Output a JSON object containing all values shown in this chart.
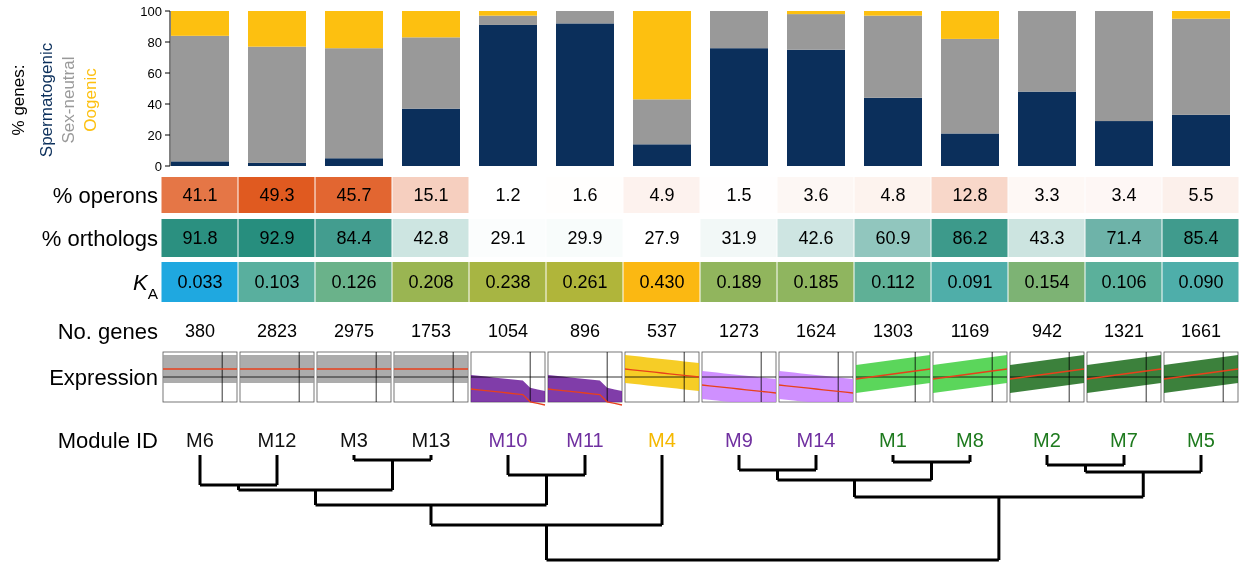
{
  "chart_data": [
    {
      "type": "bar",
      "stacked": true,
      "ylabel": "% genes:",
      "legend": "left",
      "tick_labels": "y",
      "ylim": [
        0,
        100
      ],
      "yticks": [
        0,
        20,
        40,
        60,
        80,
        100
      ],
      "categories": [
        null,
        null,
        null,
        null,
        null,
        null,
        null,
        null,
        null,
        null,
        null,
        null,
        null,
        null
      ],
      "series": [
        {
          "name": "Spermatogenic",
          "color": "#0b2f5b",
          "values": [
            3,
            2,
            5,
            37,
            91,
            92,
            14,
            76,
            75,
            44,
            21,
            48,
            29,
            33
          ]
        },
        {
          "name": "Sex-neutral",
          "color": "#999999",
          "values": [
            81,
            75,
            71,
            46,
            6,
            8,
            29,
            24,
            23,
            53,
            61,
            52,
            71,
            62
          ]
        },
        {
          "name": "Oogenic",
          "color": "#fdc010",
          "values": [
            16,
            23,
            24,
            17,
            3,
            0,
            57,
            0,
            2,
            3,
            18,
            0,
            0,
            5
          ]
        }
      ]
    },
    {
      "type": "heatmap",
      "y_categories": [
        "% operons",
        "% orthologs",
        "K$_{A}$"
      ],
      "categories": [
        null,
        null,
        null,
        null,
        null,
        null,
        null,
        null,
        null,
        null,
        null,
        null,
        null,
        null
      ],
      "cells": [
        [
          41.1,
          49.3,
          45.7,
          15.1,
          1.2,
          1.6,
          4.9,
          1.5,
          3.6,
          4.8,
          12.8,
          3.3,
          3.4,
          5.5
        ],
        [
          91.8,
          92.9,
          84.4,
          42.8,
          29.1,
          29.9,
          27.9,
          31.9,
          42.6,
          60.9,
          86.2,
          43.3,
          71.4,
          85.4
        ],
        [
          0.033,
          0.103,
          0.126,
          0.208,
          0.238,
          0.261,
          0.43,
          0.189,
          0.185,
          0.112,
          0.091,
          0.154,
          0.106,
          0.09
        ]
      ],
      "cell_labels": [
        [
          "41.1",
          "49.3",
          "45.7",
          "15.1",
          "1.2",
          "1.6",
          "4.9",
          "1.5",
          "3.6",
          "4.8",
          "12.8",
          "3.3",
          "3.4",
          "5.5"
        ],
        [
          "91.8",
          "92.9",
          "84.4",
          "42.8",
          "29.1",
          "29.9",
          "27.9",
          "31.9",
          "42.6",
          "60.9",
          "86.2",
          "43.3",
          "71.4",
          "85.4"
        ],
        [
          "0.033",
          "0.103",
          "0.126",
          "0.208",
          "0.238",
          "0.261",
          "0.430",
          "0.189",
          "0.185",
          "0.112",
          "0.091",
          "0.154",
          "0.106",
          "0.090"
        ]
      ],
      "colors": [
        [
          "#ffffff",
          "#e05a20"
        ],
        [
          "#ffffff",
          "#278e7e"
        ],
        [
          "#1fa8e0",
          "#8fb760",
          "#bcb428",
          "#fbb812"
        ]
      ]
    },
    {
      "type": "other",
      "title": "No. genes",
      "data_labels": true,
      "values": [
        380,
        2823,
        2975,
        1753,
        1054,
        896,
        537,
        1273,
        1624,
        1303,
        1169,
        942,
        1321,
        1661
      ]
    },
    {
      "type": "other",
      "title": "Expression",
      "colors": [
        "#9e9e9e",
        "#9e9e9e",
        "#9e9e9e",
        "#9e9e9e",
        "#6a1b9a",
        "#6a1b9a",
        "#f5c400",
        "#c77dff",
        "#c77dff",
        "#3ecf3e",
        "#3ecf3e",
        "#1a6b1a",
        "#1a6b1a",
        "#1a6b1a"
      ]
    },
    {
      "type": "other",
      "title": "Module ID",
      "categories": [
        "M6",
        "M12",
        "M3",
        "M13",
        "M10",
        "M11",
        "M4",
        "M9",
        "M14",
        "M1",
        "M8",
        "M2",
        "M7",
        "M5"
      ],
      "colors": [
        "#111111",
        "#111111",
        "#111111",
        "#111111",
        "#7030a0",
        "#7030a0",
        "#f5b800",
        "#7030a0",
        "#7030a0",
        "#1e7a1e",
        "#1e7a1e",
        "#1e7a1e",
        "#1e7a1e",
        "#1e7a1e"
      ]
    }
  ]
}
